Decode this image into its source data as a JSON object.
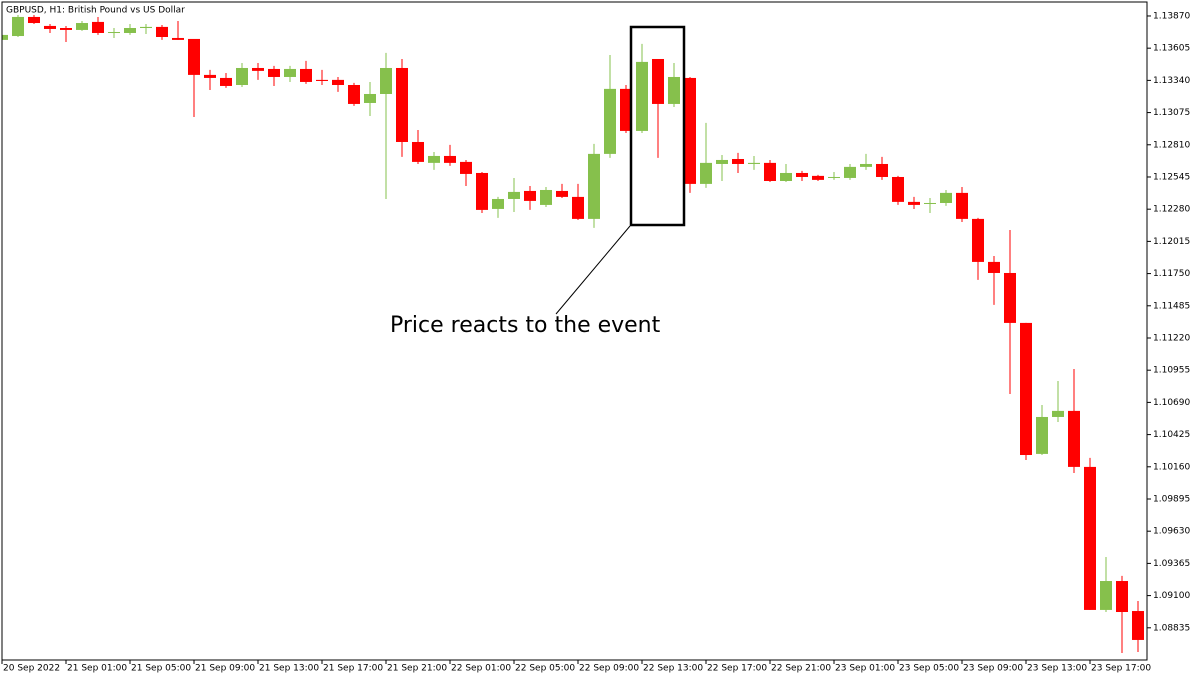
{
  "chart_data": {
    "type": "candlestick",
    "title": "GBPUSD, H1:  British Pound vs US Dollar",
    "annotation": "Price reacts to the event",
    "up_color": "#86c04c",
    "down_color": "#ff0000",
    "categories": [
      "20 Sep 2022",
      null,
      null,
      null,
      "21 Sep 01:00",
      null,
      null,
      null,
      "21 Sep 05:00",
      null,
      null,
      null,
      "21 Sep 09:00",
      null,
      null,
      null,
      "21 Sep 13:00",
      null,
      null,
      null,
      "21 Sep 17:00",
      null,
      null,
      null,
      "21 Sep 21:00",
      null,
      null,
      null,
      "22 Sep 01:00",
      null,
      null,
      null,
      "22 Sep 05:00",
      null,
      null,
      null,
      "22 Sep 09:00",
      null,
      null,
      null,
      "22 Sep 13:00",
      null,
      null,
      null,
      "22 Sep 17:00",
      null,
      null,
      null,
      "22 Sep 21:00",
      null,
      null,
      null,
      "23 Sep 01:00",
      null,
      null,
      null,
      "23 Sep 05:00",
      null,
      null,
      null,
      "23 Sep 09:00",
      null,
      null,
      null,
      "23 Sep 13:00",
      null,
      null,
      null,
      "23 Sep 17:00",
      null,
      null,
      null
    ],
    "open": [
      1.13673,
      1.13705,
      1.13862,
      1.13788,
      1.13771,
      1.13755,
      1.13821,
      1.1373,
      1.1373,
      1.13771,
      1.1378,
      1.13689,
      1.13681,
      1.13385,
      1.1336,
      1.13302,
      1.13442,
      1.13434,
      1.13368,
      1.13434,
      1.13344,
      1.13344,
      1.13302,
      1.13154,
      1.13228,
      1.13442,
      1.12833,
      1.12661,
      1.12718,
      1.12669,
      1.12578,
      1.12282,
      1.12364,
      1.1243,
      1.12315,
      1.1243,
      1.12381,
      1.122,
      1.12735,
      1.1327,
      1.12924,
      1.13516,
      1.13146,
      1.1336,
      1.12488,
      1.12652,
      1.12693,
      1.12652,
      1.12661,
      1.12512,
      1.12578,
      1.12554,
      1.12537,
      1.12537,
      1.12628,
      1.12652,
      1.12545,
      1.1234,
      1.12323,
      1.12331,
      1.12414,
      1.122,
      1.11846,
      1.11755,
      1.11344,
      1.10266,
      1.1057,
      1.1062,
      1.10159,
      1.08982,
      1.0922,
      1.08973
    ],
    "high": [
      1.13722,
      1.13878,
      1.13878,
      1.13804,
      1.13788,
      1.13829,
      1.13862,
      1.13771,
      1.13804,
      1.13804,
      1.13796,
      1.13829,
      1.13681,
      1.13426,
      1.13401,
      1.13483,
      1.13483,
      1.13459,
      1.13459,
      1.135,
      1.13426,
      1.13368,
      1.13319,
      1.13327,
      1.13566,
      1.13516,
      1.12932,
      1.12751,
      1.12809,
      1.12685,
      1.12586,
      1.12381,
      1.12537,
      1.12471,
      1.12463,
      1.12488,
      1.12488,
      1.12817,
      1.13549,
      1.13302,
      1.1364,
      1.13516,
      1.13483,
      1.13368,
      1.1299,
      1.12726,
      1.12743,
      1.12718,
      1.12685,
      1.12652,
      1.12595,
      1.12562,
      1.12586,
      1.12652,
      1.12735,
      1.1271,
      1.12554,
      1.12381,
      1.12372,
      1.12438,
      1.12463,
      1.12208,
      1.11895,
      1.12109,
      1.11344,
      1.10669,
      1.10866,
      1.10965,
      1.10233,
      1.09418,
      1.09262,
      1.09056
    ],
    "low": [
      1.13656,
      1.13697,
      1.13804,
      1.1373,
      1.13656,
      1.13747,
      1.13714,
      1.13689,
      1.13714,
      1.13722,
      1.13673,
      1.13673,
      1.13039,
      1.13261,
      1.13278,
      1.13286,
      1.13344,
      1.13294,
      1.13327,
      1.13311,
      1.13302,
      1.13245,
      1.1313,
      1.13047,
      1.12364,
      1.1271,
      1.12652,
      1.12603,
      1.12636,
      1.12471,
      1.12249,
      1.12208,
      1.12257,
      1.12274,
      1.12298,
      1.12372,
      1.12191,
      1.12126,
      1.12702,
      1.12907,
      1.12907,
      1.12702,
      1.13121,
      1.12414,
      1.12455,
      1.12512,
      1.12578,
      1.12603,
      1.12504,
      1.12504,
      1.12512,
      1.12512,
      1.12521,
      1.12521,
      1.12603,
      1.12521,
      1.12315,
      1.12282,
      1.12249,
      1.12307,
      1.12175,
      1.11698,
      1.11492,
      1.10759,
      1.10216,
      1.10257,
      1.10529,
      1.10109,
      1.08982,
      1.08965,
      1.08628,
      1.08636
    ],
    "close": [
      1.13714,
      1.13862,
      1.13812,
      1.13763,
      1.13755,
      1.13812,
      1.1373,
      1.13738,
      1.13771,
      1.1378,
      1.13697,
      1.13673,
      1.13385,
      1.1336,
      1.13294,
      1.13442,
      1.13418,
      1.13368,
      1.13434,
      1.13327,
      1.13335,
      1.13302,
      1.13146,
      1.13228,
      1.13442,
      1.12833,
      1.12669,
      1.12718,
      1.12661,
      1.1257,
      1.12274,
      1.12364,
      1.12422,
      1.12348,
      1.12438,
      1.12381,
      1.122,
      1.12735,
      1.1327,
      1.12924,
      1.13492,
      1.13146,
      1.13368,
      1.12488,
      1.12661,
      1.12685,
      1.12652,
      1.12661,
      1.12512,
      1.12578,
      1.12545,
      1.12521,
      1.12545,
      1.12628,
      1.12652,
      1.12545,
      1.1234,
      1.12315,
      1.12331,
      1.12414,
      1.122,
      1.11846,
      1.11755,
      1.11344,
      1.10257,
      1.1057,
      1.1062,
      1.10159,
      1.08982,
      1.0922,
      1.08965,
      1.08735
    ],
    "ylim": [
      1.0857,
      1.13985
    ],
    "yticks": [
      {
        "value": 1.1387,
        "label": "1.13870"
      },
      1.13605,
      {
        "value": 1.1334,
        "label": "1.13340"
      },
      1.13075,
      {
        "value": 1.1281,
        "label": "1.12810"
      },
      1.12545,
      {
        "value": 1.1228,
        "label": "1.12280"
      },
      1.12015,
      {
        "value": 1.1175,
        "label": "1.11750"
      },
      1.11485,
      {
        "value": 1.1122,
        "label": "1.11220"
      },
      1.10955,
      {
        "value": 1.1069,
        "label": "1.10690"
      },
      1.10425,
      {
        "value": 1.1016,
        "label": "1.10160"
      },
      1.09895,
      {
        "value": 1.0963,
        "label": "1.09630"
      },
      1.09365,
      {
        "value": 1.091,
        "label": "1.09100"
      },
      1.08835
    ]
  }
}
